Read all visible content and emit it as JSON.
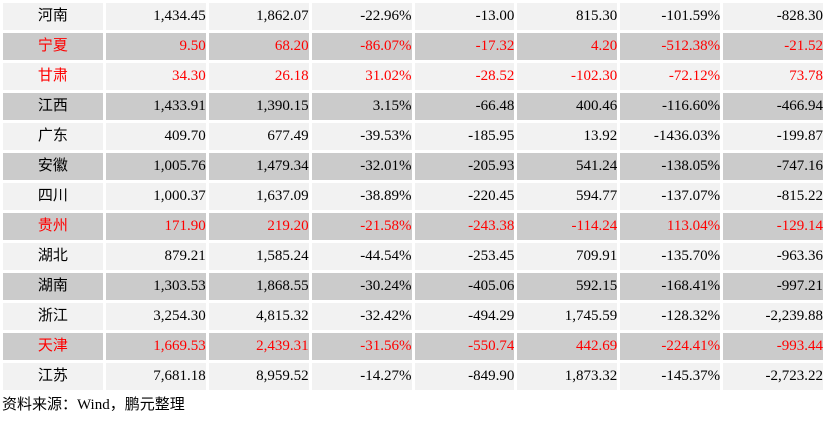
{
  "table": {
    "columns_per_row": 8,
    "rows": [
      {
        "province": "河南",
        "values": [
          "1,434.45",
          "1,862.07",
          "-22.96%",
          "-13.00",
          "815.30",
          "-101.59%",
          "-828.30"
        ],
        "red": false,
        "shade": "light"
      },
      {
        "province": "宁夏",
        "values": [
          "9.50",
          "68.20",
          "-86.07%",
          "-17.32",
          "4.20",
          "-512.38%",
          "-21.52"
        ],
        "red": true,
        "shade": "dark"
      },
      {
        "province": "甘肃",
        "values": [
          "34.30",
          "26.18",
          "31.02%",
          "-28.52",
          "-102.30",
          "-72.12%",
          "73.78"
        ],
        "red": true,
        "shade": "light"
      },
      {
        "province": "江西",
        "values": [
          "1,433.91",
          "1,390.15",
          "3.15%",
          "-66.48",
          "400.46",
          "-116.60%",
          "-466.94"
        ],
        "red": false,
        "shade": "dark"
      },
      {
        "province": "广东",
        "values": [
          "409.70",
          "677.49",
          "-39.53%",
          "-185.95",
          "13.92",
          "-1436.03%",
          "-199.87"
        ],
        "red": false,
        "shade": "light"
      },
      {
        "province": "安徽",
        "values": [
          "1,005.76",
          "1,479.34",
          "-32.01%",
          "-205.93",
          "541.24",
          "-138.05%",
          "-747.16"
        ],
        "red": false,
        "shade": "dark"
      },
      {
        "province": "四川",
        "values": [
          "1,000.37",
          "1,637.09",
          "-38.89%",
          "-220.45",
          "594.77",
          "-137.07%",
          "-815.22"
        ],
        "red": false,
        "shade": "light"
      },
      {
        "province": "贵州",
        "values": [
          "171.90",
          "219.20",
          "-21.58%",
          "-243.38",
          "-114.24",
          "113.04%",
          "-129.14"
        ],
        "red": true,
        "shade": "dark"
      },
      {
        "province": "湖北",
        "values": [
          "879.21",
          "1,585.24",
          "-44.54%",
          "-253.45",
          "709.91",
          "-135.70%",
          "-963.36"
        ],
        "red": false,
        "shade": "light"
      },
      {
        "province": "湖南",
        "values": [
          "1,303.53",
          "1,868.55",
          "-30.24%",
          "-405.06",
          "592.15",
          "-168.41%",
          "-997.21"
        ],
        "red": false,
        "shade": "dark"
      },
      {
        "province": "浙江",
        "values": [
          "3,254.30",
          "4,815.32",
          "-32.42%",
          "-494.29",
          "1,745.59",
          "-128.32%",
          "-2,239.88"
        ],
        "red": false,
        "shade": "light"
      },
      {
        "province": "天津",
        "values": [
          "1,669.53",
          "2,439.31",
          "-31.56%",
          "-550.74",
          "442.69",
          "-224.41%",
          "-993.44"
        ],
        "red": true,
        "shade": "dark"
      },
      {
        "province": "江苏",
        "values": [
          "7,681.18",
          "8,959.52",
          "-14.27%",
          "-849.90",
          "1,873.32",
          "-145.37%",
          "-2,723.22"
        ],
        "red": false,
        "shade": "light"
      }
    ]
  },
  "footer": {
    "source_note": "资料来源：Wind，鹏元整理"
  },
  "colors": {
    "row_light": "#f2f2f2",
    "row_dark": "#cbcbcb",
    "highlight_text": "#ff0000",
    "text": "#000000",
    "page_background": "#ffffff"
  }
}
